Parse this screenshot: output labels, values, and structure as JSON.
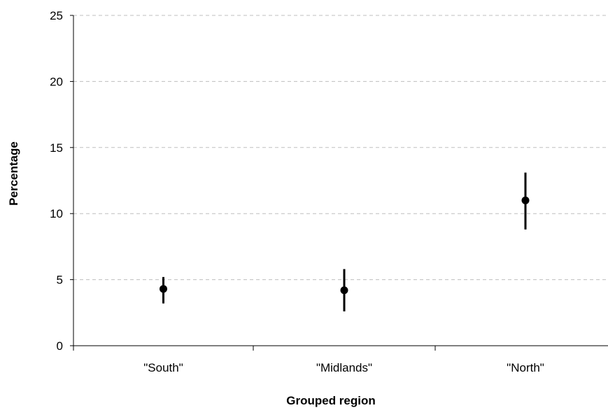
{
  "chart_data": {
    "type": "scatter",
    "title": "",
    "xlabel": "Grouped region",
    "ylabel": "Percentage",
    "categories": [
      "\"South\"",
      "\"Midlands\"",
      "\"North\""
    ],
    "points": [
      {
        "category": "\"South\"",
        "value": 4.3,
        "lower": 3.2,
        "upper": 5.2
      },
      {
        "category": "\"Midlands\"",
        "value": 4.2,
        "lower": 2.6,
        "upper": 5.8
      },
      {
        "category": "\"North\"",
        "value": 11.0,
        "lower": 8.8,
        "upper": 13.1
      }
    ],
    "ylim": [
      0,
      25
    ],
    "yticks": [
      0,
      5,
      10,
      15,
      20,
      25
    ],
    "grid": "horizontal dashed",
    "legend": "none",
    "colors": {
      "marker": "#000000",
      "grid": "#bfbfbf",
      "axis": "#000000"
    }
  }
}
